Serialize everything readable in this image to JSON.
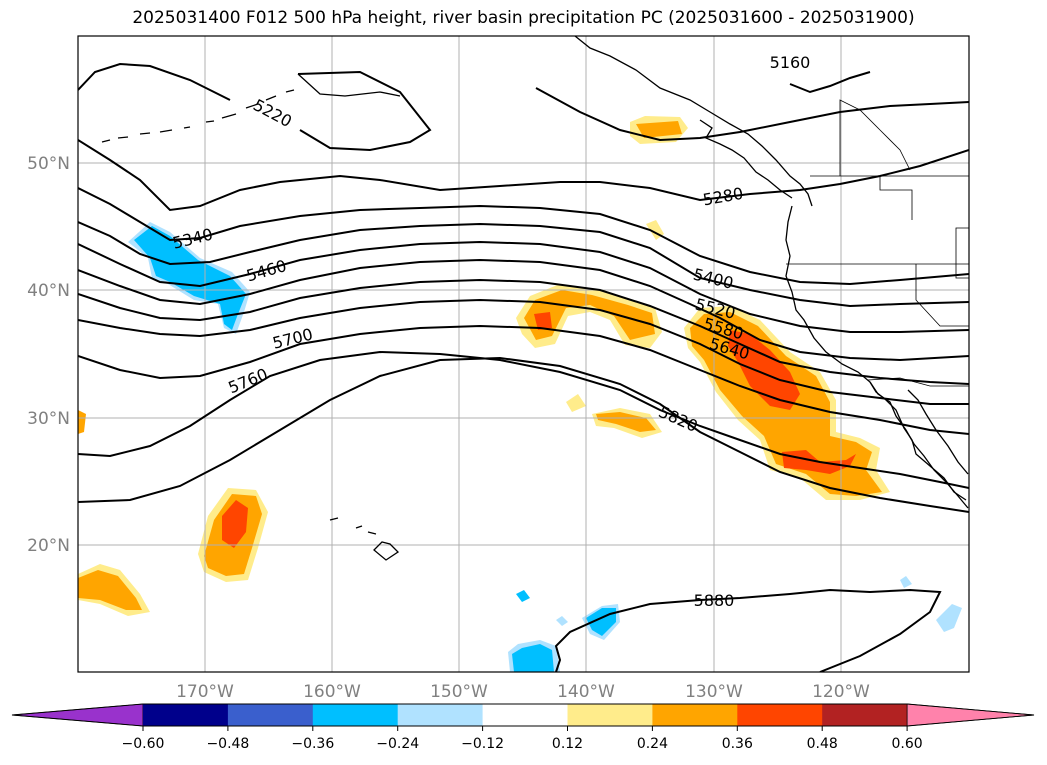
{
  "title": "2025031400 F012 500 hPa height, river basin precipitation PC (2025031600 - 2025031900)",
  "lat_labels": [
    "50°N",
    "40°N",
    "30°N",
    "20°N"
  ],
  "lon_labels": [
    "170°W",
    "160°W",
    "150°W",
    "140°W",
    "130°W",
    "120°W"
  ],
  "contour_labels": [
    "5160",
    "5220",
    "5280",
    "5340",
    "5400",
    "5460",
    "5520",
    "5580",
    "5640",
    "5700",
    "5760",
    "5820",
    "5880"
  ],
  "colorbar": {
    "ticks": [
      "−0.60",
      "−0.48",
      "−0.36",
      "−0.24",
      "−0.12",
      "0.12",
      "0.24",
      "0.36",
      "0.48",
      "0.60"
    ],
    "colors": [
      "#9932cc",
      "#00008b",
      "#3a5fcd",
      "#00bfff",
      "#b0e2ff",
      "#ffffff",
      "#ffec8b",
      "#ffa500",
      "#ff4500",
      "#b22222",
      "#ff82ab"
    ]
  },
  "colors": {
    "land_outline": "#000000",
    "grid": "#b0b0b0",
    "contour": "#000000",
    "light_yellow": "#ffec8b",
    "orange": "#ffa500",
    "red_orange": "#ff4500",
    "deep_sky_blue": "#00bfff",
    "light_blue": "#b0e2ff"
  }
}
